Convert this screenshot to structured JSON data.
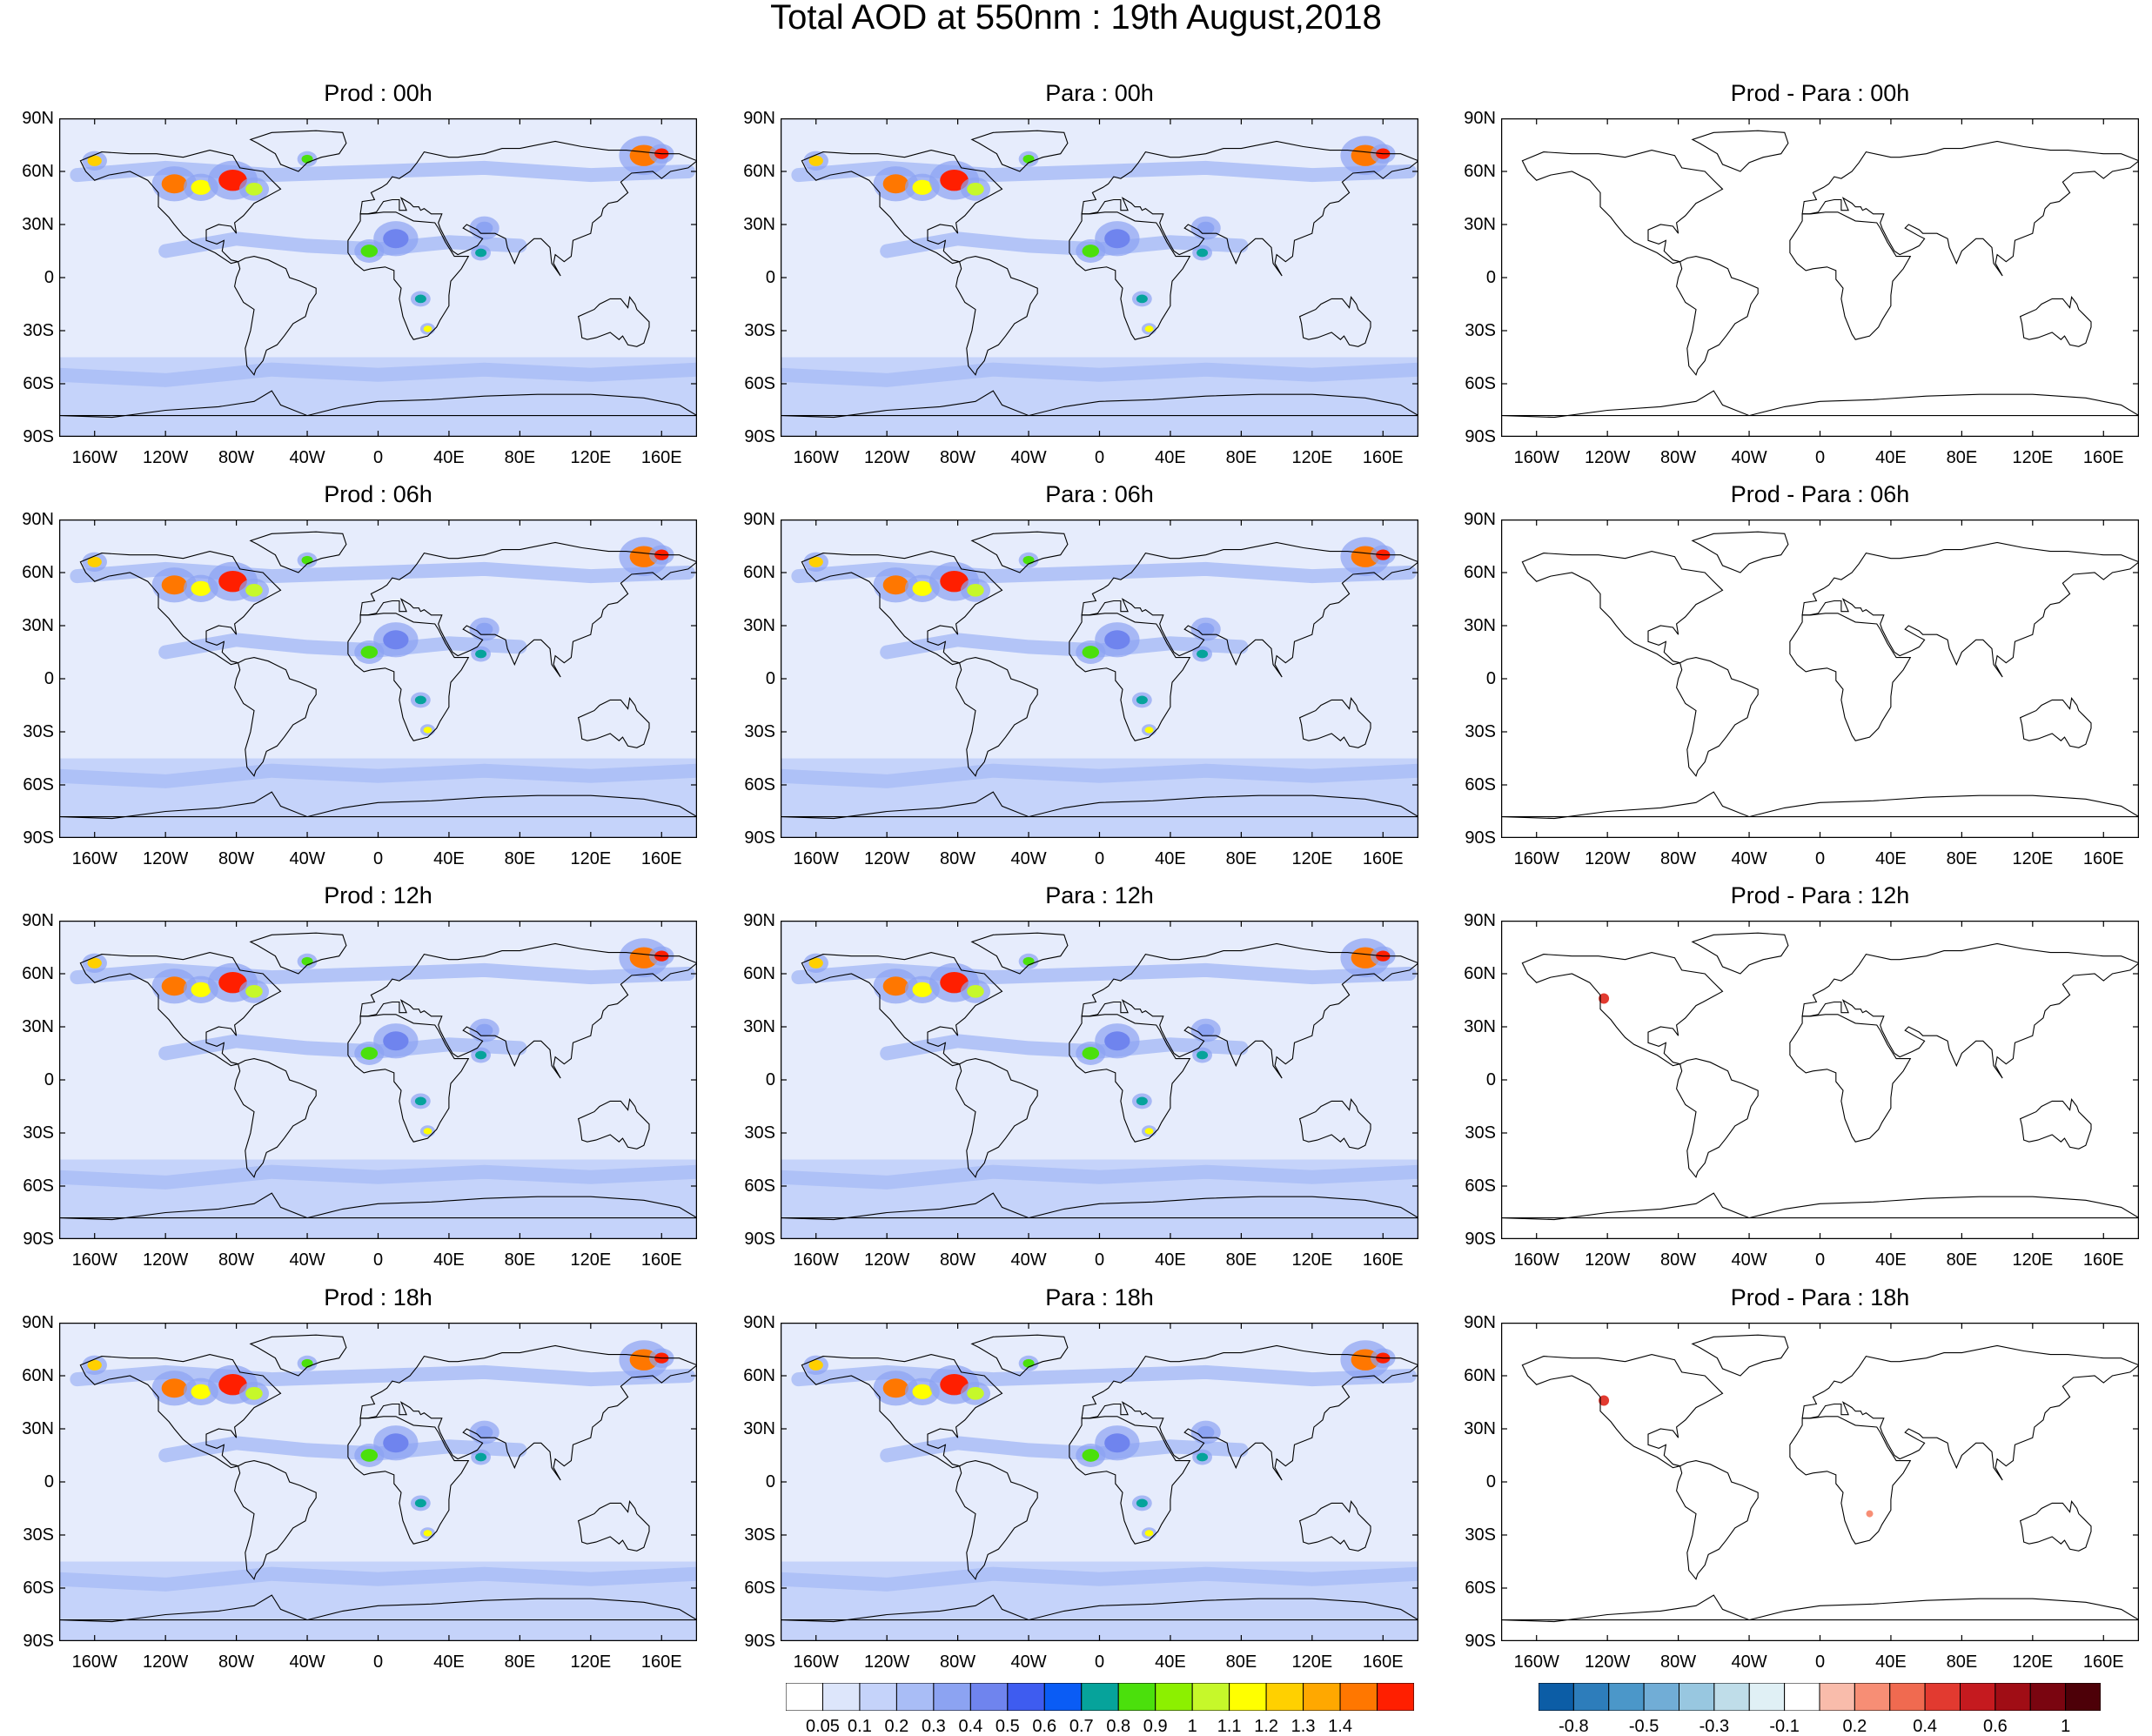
{
  "main_title": "Total AOD at 550nm : 19th August,2018",
  "axes": {
    "lat_ticks": [
      "90N",
      "60N",
      "30N",
      "0",
      "30S",
      "60S",
      "90S"
    ],
    "lon_ticks": [
      "160W",
      "120W",
      "80W",
      "40W",
      "0",
      "40E",
      "80E",
      "120E",
      "160E"
    ]
  },
  "panels": [
    {
      "title": "Prod : 00h",
      "kind": "aod"
    },
    {
      "title": "Para : 00h",
      "kind": "aod"
    },
    {
      "title": "Prod - Para : 00h",
      "kind": "diff"
    },
    {
      "title": "Prod : 06h",
      "kind": "aod"
    },
    {
      "title": "Para : 06h",
      "kind": "aod"
    },
    {
      "title": "Prod - Para : 06h",
      "kind": "diff"
    },
    {
      "title": "Prod : 12h",
      "kind": "aod"
    },
    {
      "title": "Para : 12h",
      "kind": "aod"
    },
    {
      "title": "Prod - Para : 12h",
      "kind": "diff"
    },
    {
      "title": "Prod : 18h",
      "kind": "aod"
    },
    {
      "title": "Para : 18h",
      "kind": "aod"
    },
    {
      "title": "Prod - Para : 18h",
      "kind": "diff"
    }
  ],
  "colorbar_aod": {
    "labels": [
      "0.05",
      "0.1",
      "0.2",
      "0.3",
      "0.4",
      "0.5",
      "0.6",
      "0.7",
      "0.8",
      "0.9",
      "1",
      "1.1",
      "1.2",
      "1.3",
      "1.4"
    ],
    "colors": [
      "#ffffff",
      "#dde6fb",
      "#c5d3fa",
      "#a9bdf6",
      "#8ca3f2",
      "#6f84ee",
      "#3e5cf0",
      "#0a5cf5",
      "#06a39b",
      "#4be00c",
      "#8cf000",
      "#c6f82a",
      "#ffff00",
      "#ffd000",
      "#ffa800",
      "#ff7700",
      "#ff1f00"
    ]
  },
  "colorbar_diff": {
    "labels": [
      "-0.8",
      "-0.5",
      "-0.3",
      "-0.1",
      "0.2",
      "0.4",
      "0.6",
      "1"
    ],
    "colors": [
      "#0c5da6",
      "#2d7dbb",
      "#4b97c9",
      "#71add6",
      "#98c7e0",
      "#bfdde9",
      "#e0f0f5",
      "#ffffff",
      "#f9bcab",
      "#f78e75",
      "#f06a50",
      "#e23a30",
      "#c51a1f",
      "#a00d15",
      "#7a0510",
      "#4d0008"
    ]
  }
}
